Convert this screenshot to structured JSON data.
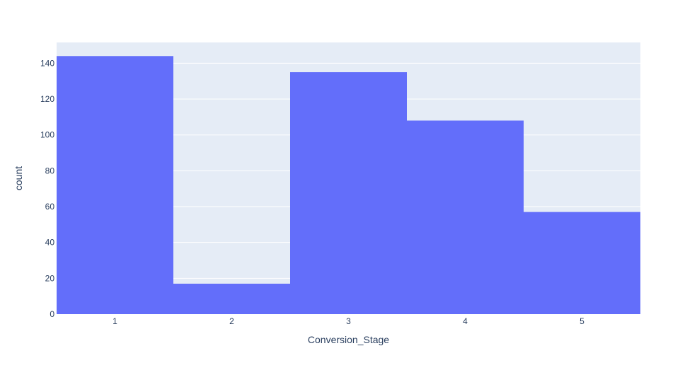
{
  "chart_data": {
    "type": "bar",
    "title": "",
    "xlabel": "Conversion_Stage",
    "ylabel": "count",
    "categories": [
      "1",
      "2",
      "3",
      "4",
      "5"
    ],
    "values": [
      144,
      17,
      135,
      108,
      57
    ],
    "ylim": [
      0,
      151.6
    ],
    "yticks": [
      0,
      20,
      40,
      60,
      80,
      100,
      120,
      140
    ],
    "grid": "horizontal",
    "legend": "none",
    "colors": {
      "bar": "#636efa",
      "plot_bg": "#e5ecf6",
      "grid": "#ffffff",
      "text": "#2a3f5f"
    }
  }
}
